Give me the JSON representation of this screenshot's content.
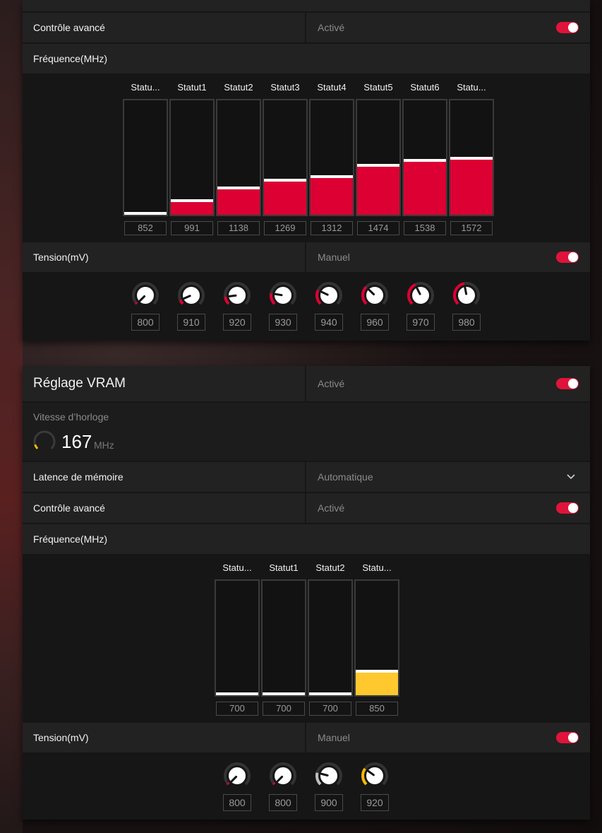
{
  "gpu": {
    "advanced_control": {
      "label": "Contrôle avancé",
      "value": "Activé",
      "enabled": true
    },
    "frequency": {
      "label": "Fréquence(MHz)",
      "states": [
        {
          "label": "Statu...",
          "value": "852",
          "level": 0.0
        },
        {
          "label": "Statut1",
          "value": "991",
          "level": 0.11
        },
        {
          "label": "Statut2",
          "value": "1138",
          "level": 0.22
        },
        {
          "label": "Statut3",
          "value": "1269",
          "level": 0.29
        },
        {
          "label": "Statut4",
          "value": "1312",
          "level": 0.32
        },
        {
          "label": "Statut5",
          "value": "1474",
          "level": 0.42
        },
        {
          "label": "Statut6",
          "value": "1538",
          "level": 0.46
        },
        {
          "label": "Statu...",
          "value": "1572",
          "level": 0.48
        }
      ],
      "fill_color": "#dc0033"
    },
    "voltage": {
      "label": "Tension(mV)",
      "value": "Manuel",
      "enabled": true,
      "knobs": [
        {
          "value": "800",
          "level": 0.0
        },
        {
          "value": "910",
          "level": 0.08
        },
        {
          "value": "920",
          "level": 0.14
        },
        {
          "value": "930",
          "level": 0.2
        },
        {
          "value": "940",
          "level": 0.26
        },
        {
          "value": "960",
          "level": 0.33
        },
        {
          "value": "970",
          "level": 0.4
        },
        {
          "value": "980",
          "level": 0.46
        }
      ],
      "arc_color": "#dc0033"
    }
  },
  "vram": {
    "title": "Réglage VRAM",
    "value": "Activé",
    "enabled": true,
    "clock": {
      "label": "Vitesse d’horloge",
      "value": "167",
      "unit": "MHz",
      "level": 0.1,
      "color": "#f5b800"
    },
    "memory_latency": {
      "label": "Latence de mémoire",
      "value": "Automatique"
    },
    "advanced_control": {
      "label": "Contrôle avancé",
      "value": "Activé",
      "enabled": true
    },
    "frequency": {
      "label": "Fréquence(MHz)",
      "states": [
        {
          "label": "Statu...",
          "value": "700",
          "level": 0.0
        },
        {
          "label": "Statut1",
          "value": "700",
          "level": 0.0
        },
        {
          "label": "Statut2",
          "value": "700",
          "level": 0.0
        },
        {
          "label": "Statu...",
          "value": "850",
          "level": 0.2
        }
      ],
      "fill_color": "#ffc82e"
    },
    "voltage": {
      "label": "Tension(mV)",
      "value": "Manuel",
      "enabled": true,
      "knobs": [
        {
          "value": "800",
          "level": 0.0,
          "color": "#dc0033"
        },
        {
          "value": "800",
          "level": 0.0,
          "color": "#dc0033"
        },
        {
          "value": "900",
          "level": 0.22,
          "color": "#bfbfbf"
        },
        {
          "value": "920",
          "level": 0.3,
          "color": "#f5b800"
        }
      ]
    }
  }
}
